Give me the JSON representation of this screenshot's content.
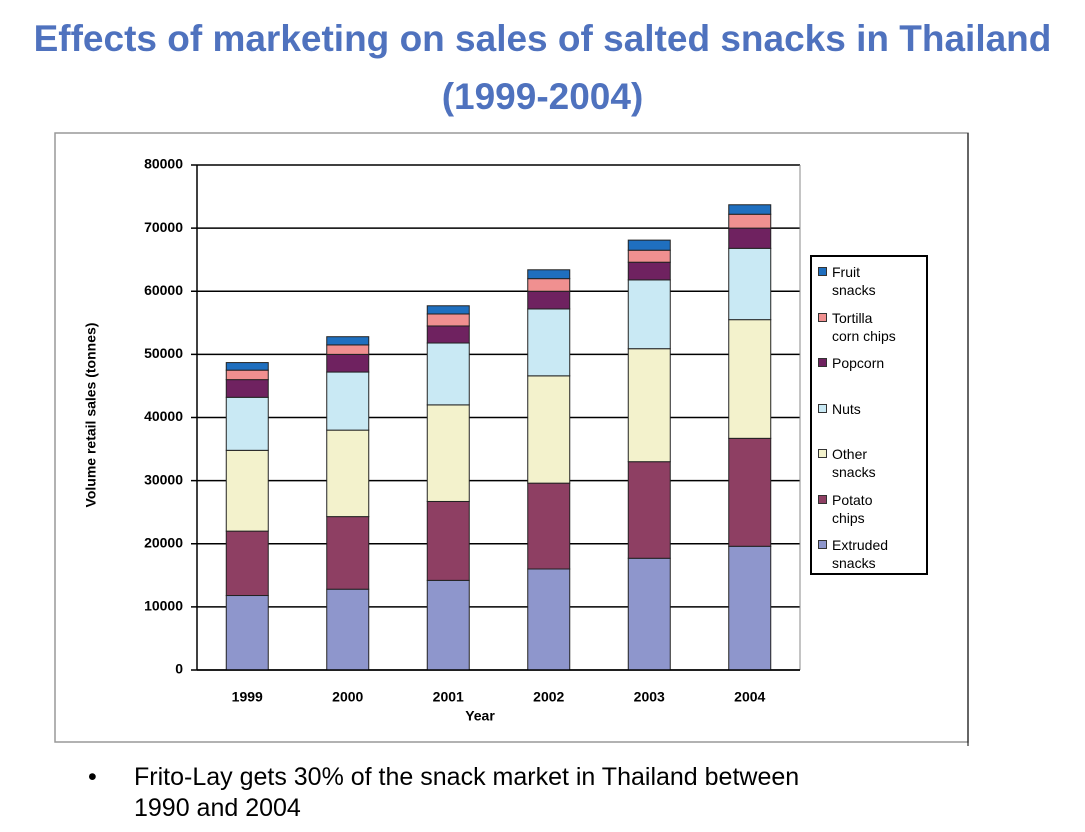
{
  "chart_data": {
    "type": "stacked_bar",
    "title": "Effects of marketing on sales of salted snacks in Thailand (1999-2004)",
    "x_label": "Year",
    "y_label": "Volume retail sales (tonnes)",
    "categories": [
      "1999",
      "2000",
      "2001",
      "2002",
      "2003",
      "2004"
    ],
    "series": [
      {
        "name": "Extruded snacks",
        "color": "#8e96cc",
        "values": [
          11800,
          12800,
          14200,
          16000,
          17700,
          19600
        ]
      },
      {
        "name": "Potato chips",
        "color": "#8e3f63",
        "values": [
          10200,
          11500,
          12500,
          13600,
          15300,
          17100
        ]
      },
      {
        "name": "Other snacks",
        "color": "#f3f2cc",
        "values": [
          12800,
          13700,
          15300,
          17000,
          17900,
          18800
        ]
      },
      {
        "name": "Nuts",
        "color": "#c9e9f4",
        "values": [
          8400,
          9200,
          9800,
          10600,
          10900,
          11300
        ]
      },
      {
        "name": "Popcorn",
        "color": "#6f2260",
        "values": [
          2800,
          2800,
          2700,
          2800,
          2800,
          3200
        ]
      },
      {
        "name": "Tortilla corn chips",
        "color": "#f09090",
        "values": [
          1500,
          1500,
          1900,
          2000,
          1900,
          2200
        ]
      },
      {
        "name": "Fruit snacks",
        "color": "#1f6fbf",
        "values": [
          1200,
          1300,
          1300,
          1400,
          1600,
          1500
        ]
      }
    ],
    "ylim": [
      0,
      80000
    ],
    "yticks": [
      0,
      10000,
      20000,
      30000,
      40000,
      50000,
      60000,
      70000,
      80000
    ],
    "grid": true,
    "legend": "right"
  },
  "bullets": [
    "Frito-Lay gets 30% of the snack market in Thailand between 1990 and 2004"
  ]
}
